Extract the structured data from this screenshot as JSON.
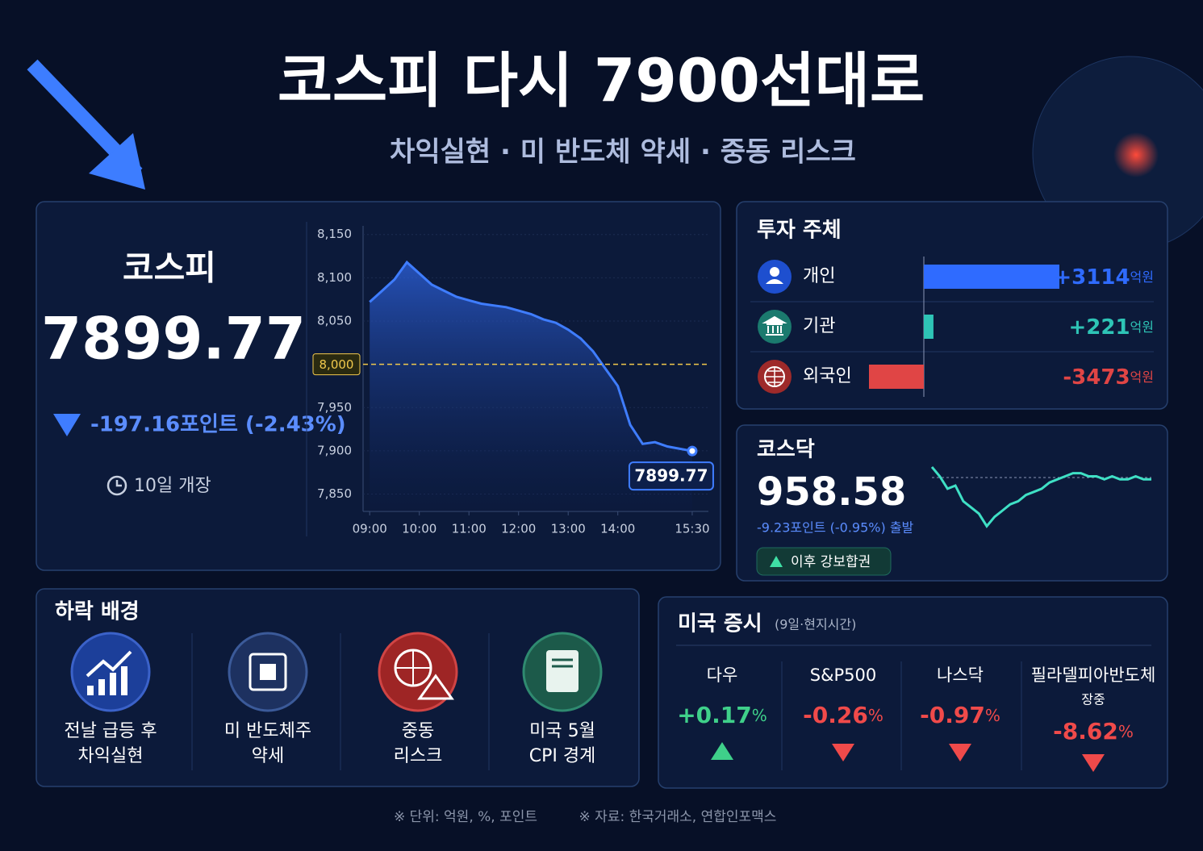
{
  "header": {
    "title": "코스피 다시 7900선대로",
    "subtitle": "차익실현 · 미 반도체 약세 · 중동 리스크"
  },
  "kospi": {
    "name": "코스피",
    "change": "-197.16포인트 (-2.43%)",
    "note": "10일 개장"
  },
  "chart_data": [
    {
      "type": "line",
      "color": "#3f7dff",
      "x": [
        "09:00",
        "09:15",
        "09:30",
        "09:45",
        "10:00",
        "10:15",
        "10:30",
        "10:45",
        "11:00",
        "11:15",
        "11:30",
        "11:45",
        "12:00",
        "12:15",
        "12:30",
        "12:45",
        "13:00",
        "13:15",
        "13:30",
        "13:45",
        "14:00",
        "14:15",
        "14:30",
        "14:45",
        "15:00",
        "15:30"
      ],
      "values": [
        8072,
        8085,
        8098,
        8118,
        8105,
        8092,
        8085,
        8078,
        8074,
        8070,
        8068,
        8066,
        8062,
        8058,
        8052,
        8048,
        8040,
        8030,
        8015,
        7995,
        7975,
        7930,
        7908,
        7910,
        7905,
        7899.77
      ],
      "xlim": [
        "08:52",
        "15:32"
      ],
      "xticks": [
        "09:00",
        "10:00",
        "11:00",
        "12:00",
        "13:00",
        "14:00",
        "15:30"
      ],
      "ylim": [
        7830,
        8160
      ],
      "yticks": [
        {
          "value": 8150,
          "label": "8,150"
        },
        {
          "value": 8100,
          "label": "8,100"
        },
        {
          "value": 8050,
          "label": "8,050"
        },
        {
          "value": 7950,
          "label": "7,950"
        },
        {
          "value": 7900,
          "label": "7,900"
        },
        {
          "value": 7850,
          "label": "7,850"
        }
      ],
      "reference_line": {
        "value": 8000,
        "label": "8,000",
        "color": "#f2c94c"
      }
    },
    {
      "type": "hbar",
      "title": "투자 주체",
      "categories": [
        "개인",
        "기관",
        "외국인"
      ],
      "values": [
        3114,
        221,
        -3473
      ],
      "value_labels": [
        "+3114",
        "+221",
        "-3473"
      ],
      "unit": "억원",
      "colors": [
        "#2f6bff",
        "#2ec4b6",
        "#e04545"
      ]
    },
    {
      "type": "sparkline",
      "title": "코스닥",
      "color": "#3fe0c5",
      "ylim": [
        948,
        970
      ],
      "values": [
        969,
        966,
        962,
        963,
        958,
        956,
        954,
        950,
        953,
        955,
        957,
        958,
        960,
        961,
        962,
        964,
        965,
        966,
        967,
        967,
        966,
        966,
        965,
        966,
        965,
        965,
        966,
        965,
        965
      ]
    }
  ],
  "kosdaq": {
    "value": 958.58,
    "change": "-9.23포인트 (-0.95%) 출발",
    "badge": "이후 강보합권"
  },
  "background": {
    "title": "하락 배경",
    "items": [
      [
        "전날 급등 후",
        "차익실현"
      ],
      [
        "미 반도체주",
        "약세"
      ],
      [
        "중동",
        "리스크"
      ],
      [
        "미국 5월",
        "CPI 경계"
      ]
    ]
  },
  "us_markets": {
    "title": "미국 증시",
    "note": "(9일·현지시간)",
    "unit": "%",
    "items": [
      {
        "name": [
          "다우"
        ],
        "value": 0.17,
        "label": "+0.17"
      },
      {
        "name": [
          "S&P500"
        ],
        "value": -0.26,
        "label": "-0.26"
      },
      {
        "name": [
          "나스닥"
        ],
        "value": -0.97,
        "label": "-0.97"
      },
      {
        "name": [
          "필라델피아반도체",
          "장중"
        ],
        "value": -8.62,
        "label": "-8.62"
      }
    ]
  },
  "footer": [
    "※ 단위: 억원, %, 포인트",
    "※ 자료: 한국거래소, 연합인포맥스"
  ]
}
